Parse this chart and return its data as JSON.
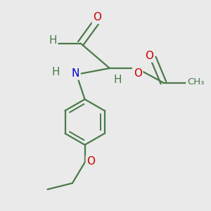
{
  "bg_color": "#eaeaea",
  "bond_color": "#4a7a4a",
  "bond_width": 1.6,
  "atom_colors": {
    "O": "#cc0000",
    "N": "#0000cc",
    "C": "#4a7a4a",
    "H": "#4a7a4a"
  },
  "font_size_main": 11,
  "font_size_small": 9.5,
  "figsize": [
    3.0,
    3.0
  ],
  "dpi": 100,
  "xlim": [
    0,
    10
  ],
  "ylim": [
    0,
    10
  ]
}
